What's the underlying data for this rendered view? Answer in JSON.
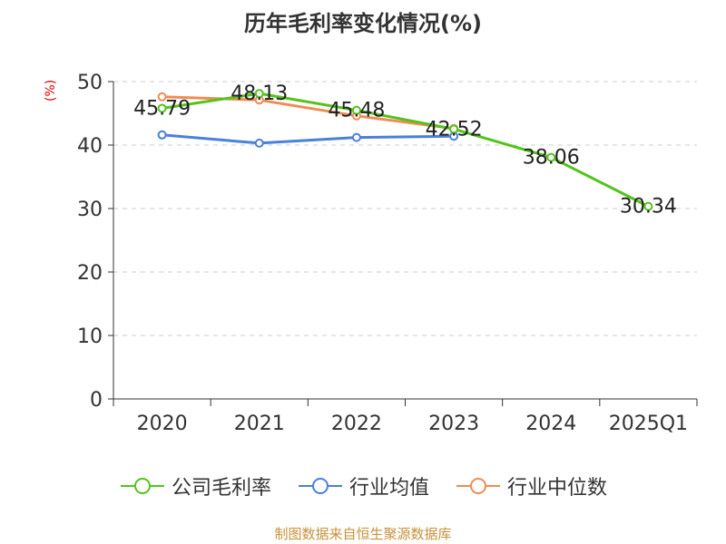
{
  "title": "历年毛利率变化情况(%)",
  "unit_label": "(%)",
  "source": "制图数据来自恒生聚源数据库",
  "colors": {
    "company": "#52c41a",
    "industry_avg": "#4a7fdc",
    "industry_median": "#f08c55",
    "axis": "#333333",
    "grid": "#cccccc"
  },
  "chart_data": {
    "type": "line",
    "categories": [
      "2020",
      "2021",
      "2022",
      "2023",
      "2024",
      "2025Q1"
    ],
    "ylim": [
      0,
      50
    ],
    "yticks": [
      0,
      10,
      20,
      30,
      40,
      50
    ],
    "grid": true,
    "legend_position": "bottom",
    "series": [
      {
        "name": "公司毛利率",
        "color_key": "company",
        "values": [
          45.79,
          48.13,
          45.48,
          42.52,
          38.06,
          30.34
        ],
        "labels": [
          "45.79",
          "48.13",
          "45.48",
          "42.52",
          "38.06",
          "30.34"
        ]
      },
      {
        "name": "行业均值",
        "color_key": "industry_avg",
        "values": [
          41.6,
          40.3,
          41.2,
          41.4,
          null,
          null
        ]
      },
      {
        "name": "行业中位数",
        "color_key": "industry_median",
        "values": [
          47.6,
          47.1,
          44.6,
          42.6,
          null,
          null
        ]
      }
    ]
  }
}
